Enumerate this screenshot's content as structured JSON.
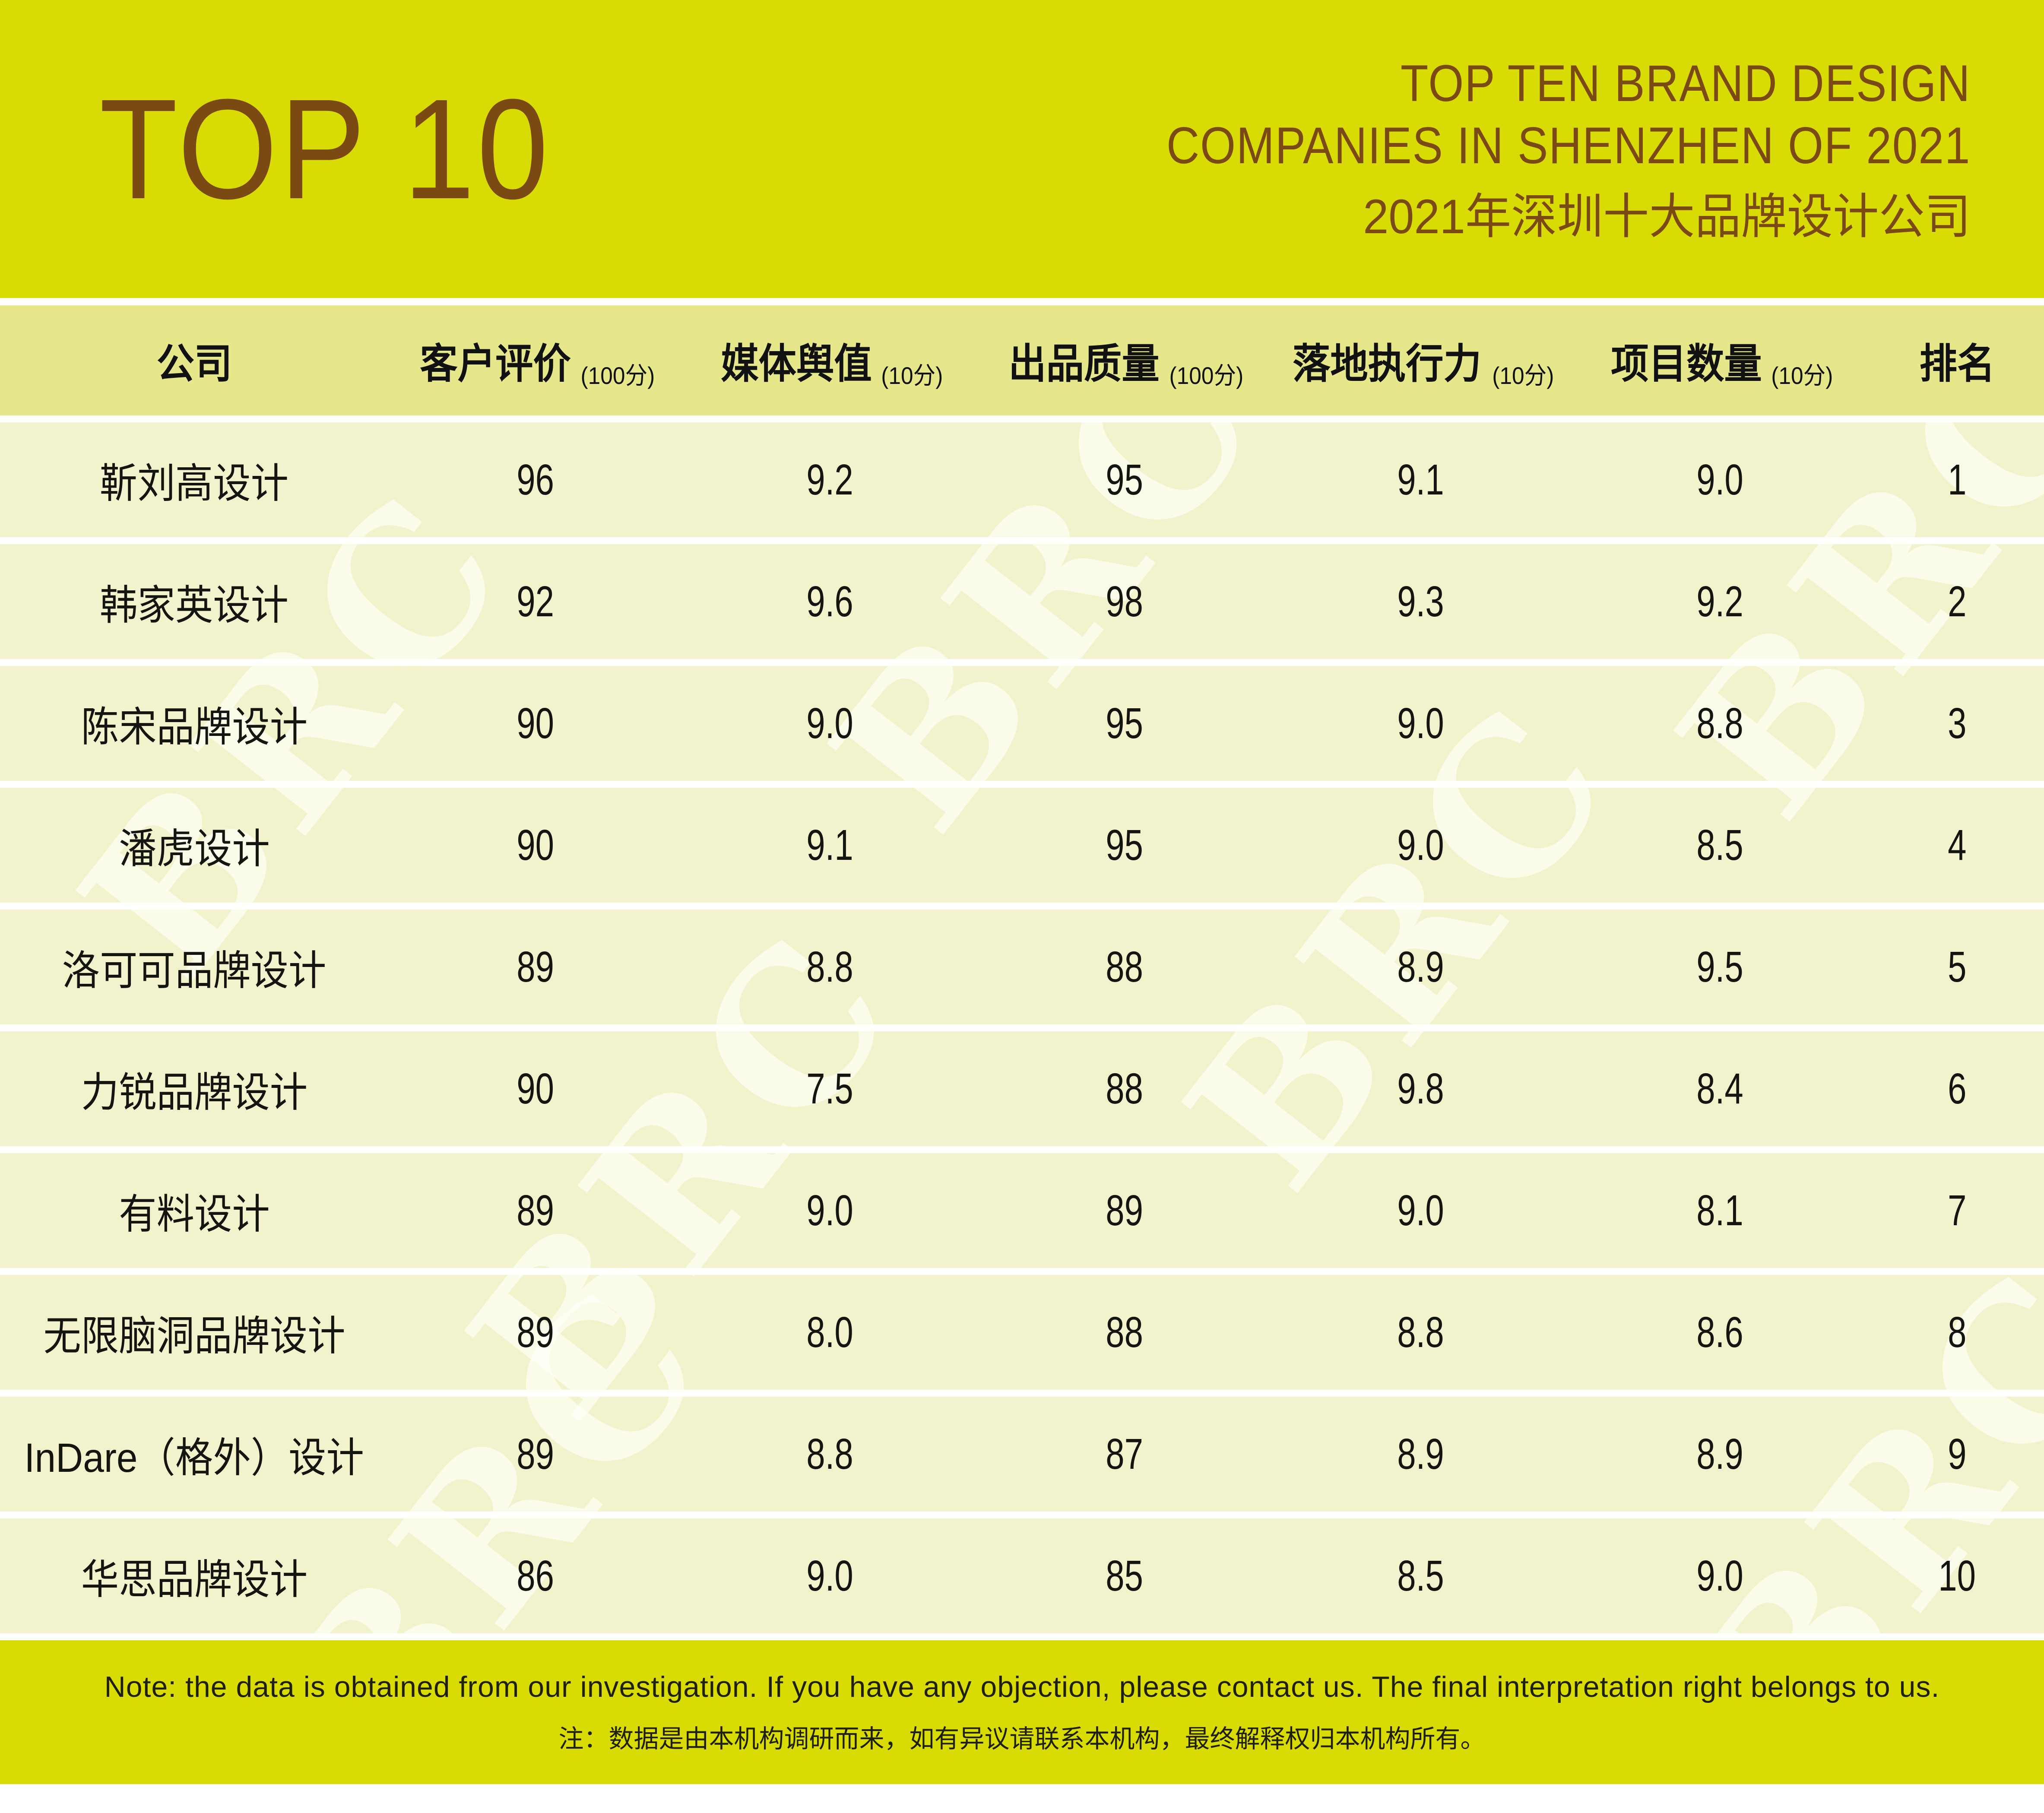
{
  "banner": {
    "top10": "TOP 10",
    "title_en_line1": "TOP TEN BRAND DESIGN",
    "title_en_line2": "COMPANIES IN SHENZHEN OF 2021",
    "title_zh": "2021年深圳十大品牌设计公司"
  },
  "table": {
    "columns": [
      {
        "label": "公司",
        "unit": ""
      },
      {
        "label": "客户评价",
        "unit": "(100分)"
      },
      {
        "label": "媒体舆值",
        "unit": "(10分)"
      },
      {
        "label": "出品质量",
        "unit": "(100分)"
      },
      {
        "label": "落地执行力",
        "unit": "(10分)"
      },
      {
        "label": "项目数量",
        "unit": "(10分)"
      },
      {
        "label": "排名",
        "unit": ""
      }
    ],
    "rows": [
      {
        "company": "靳刘高设计",
        "customer_rating": "96",
        "media_value": "9.2",
        "product_quality": "95",
        "execution": "9.1",
        "project_count": "9.0",
        "rank": "1"
      },
      {
        "company": "韩家英设计",
        "customer_rating": "92",
        "media_value": "9.6",
        "product_quality": "98",
        "execution": "9.3",
        "project_count": "9.2",
        "rank": "2"
      },
      {
        "company": "陈宋品牌设计",
        "customer_rating": "90",
        "media_value": "9.0",
        "product_quality": "95",
        "execution": "9.0",
        "project_count": "8.8",
        "rank": "3"
      },
      {
        "company": "潘虎设计",
        "customer_rating": "90",
        "media_value": "9.1",
        "product_quality": "95",
        "execution": "9.0",
        "project_count": "8.5",
        "rank": "4"
      },
      {
        "company": "洛可可品牌设计",
        "customer_rating": "89",
        "media_value": "8.8",
        "product_quality": "88",
        "execution": "8.9",
        "project_count": "9.5",
        "rank": "5"
      },
      {
        "company": "力锐品牌设计",
        "customer_rating": "90",
        "media_value": "7.5",
        "product_quality": "88",
        "execution": "9.8",
        "project_count": "8.4",
        "rank": "6"
      },
      {
        "company": "有料设计",
        "customer_rating": "89",
        "media_value": "9.0",
        "product_quality": "89",
        "execution": "9.0",
        "project_count": "8.1",
        "rank": "7"
      },
      {
        "company": "无限脑洞品牌设计",
        "customer_rating": "89",
        "media_value": "8.0",
        "product_quality": "88",
        "execution": "8.8",
        "project_count": "8.6",
        "rank": "8"
      },
      {
        "company": "InDare（格外）设计",
        "customer_rating": "89",
        "media_value": "8.8",
        "product_quality": "87",
        "execution": "8.9",
        "project_count": "8.9",
        "rank": "9"
      },
      {
        "company": "华思品牌设计",
        "customer_rating": "86",
        "media_value": "9.0",
        "product_quality": "85",
        "execution": "8.5",
        "project_count": "9.0",
        "rank": "10"
      }
    ]
  },
  "footer": {
    "note_en": "Note: the data is obtained from our investigation. If you have any objection, please contact us. The final interpretation right belongs to us.",
    "note_zh": "注：数据是由本机构调研而来，如有异议请联系本机构，最终解释权归本机构所有。"
  },
  "watermark": {
    "text": "BRC"
  },
  "colors": {
    "banner_bg": "#d9dc04",
    "header_row_bg": "#e6e78a",
    "row_bg": "#f2f3cc",
    "separator": "#ffffff",
    "title_text": "#7b4a12",
    "table_text": "#141410",
    "footer_text": "#20200a",
    "watermark": "rgba(255,255,250,0.62)"
  },
  "chart_data": {
    "type": "table",
    "title": "TOP TEN BRAND DESIGN COMPANIES IN SHENZHEN OF 2021（2021年深圳十大品牌设计公司）",
    "columns": [
      "公司",
      "客户评价(100分)",
      "媒体舆值(10分)",
      "出品质量(100分)",
      "落地执行力(10分)",
      "项目数量(10分)",
      "排名"
    ],
    "rows": [
      [
        "靳刘高设计",
        96,
        9.2,
        95,
        9.1,
        9.0,
        1
      ],
      [
        "韩家英设计",
        92,
        9.6,
        98,
        9.3,
        9.2,
        2
      ],
      [
        "陈宋品牌设计",
        90,
        9.0,
        95,
        9.0,
        8.8,
        3
      ],
      [
        "潘虎设计",
        90,
        9.1,
        95,
        9.0,
        8.5,
        4
      ],
      [
        "洛可可品牌设计",
        89,
        8.8,
        88,
        8.9,
        9.5,
        5
      ],
      [
        "力锐品牌设计",
        90,
        7.5,
        88,
        9.8,
        8.4,
        6
      ],
      [
        "有料设计",
        89,
        9.0,
        89,
        9.0,
        8.1,
        7
      ],
      [
        "无限脑洞品牌设计",
        89,
        8.0,
        88,
        8.8,
        8.6,
        8
      ],
      [
        "InDare（格外）设计",
        89,
        8.8,
        87,
        8.9,
        8.9,
        9
      ],
      [
        "华思品牌设计",
        86,
        9.0,
        85,
        8.5,
        9.0,
        10
      ]
    ]
  }
}
